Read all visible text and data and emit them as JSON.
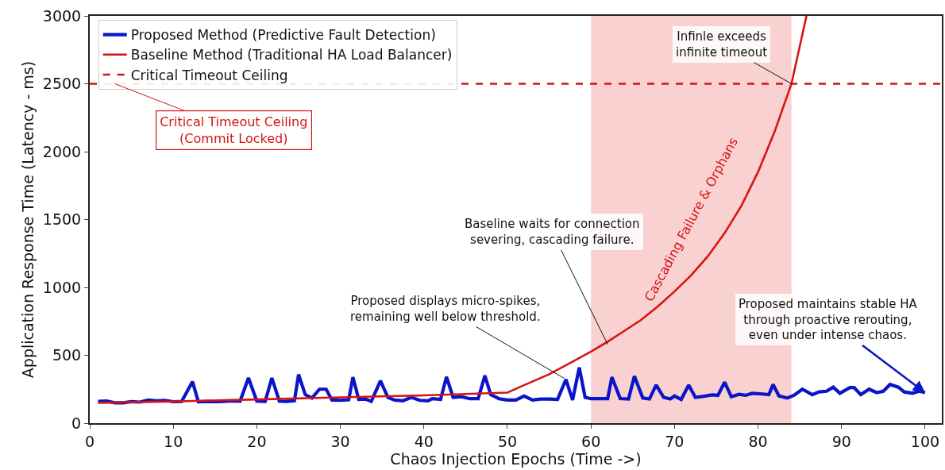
{
  "chart_data": {
    "type": "line",
    "xlabel": "Chaos Injection Epochs (Time ->)",
    "ylabel": "Application Response Time (Latency - ms)",
    "xlim": [
      0,
      102
    ],
    "xticks": [
      0,
      10,
      20,
      30,
      40,
      50,
      60,
      70,
      80,
      90,
      100
    ],
    "ylim": [
      0,
      3000
    ],
    "yticks": [
      0,
      500,
      1000,
      1500,
      2000,
      2500,
      3000
    ],
    "grid": false,
    "legend": "top left",
    "marker": "none",
    "line_style": "solid",
    "series": [
      {
        "name": "Proposed Method (Predictive Fault Detection)",
        "color": "#0a14c8",
        "x": [
          1,
          2,
          3,
          4,
          5,
          6,
          7,
          8,
          9,
          10,
          11,
          12.3,
          13,
          14,
          15,
          16,
          17,
          18,
          19,
          20,
          21,
          21.8,
          22.7,
          23.5,
          24.5,
          25,
          25.8,
          26.6,
          27.5,
          28.3,
          29,
          30,
          31,
          31.5,
          32.2,
          33,
          33.7,
          34.8,
          35.7,
          36.5,
          37.5,
          38.5,
          39.5,
          40.5,
          41,
          42,
          42.7,
          43.5,
          44.5,
          45.5,
          46.5,
          47.3,
          48,
          49,
          50,
          51,
          52,
          53,
          54,
          55,
          56,
          57,
          57.8,
          58.6,
          59.3,
          60,
          61,
          62,
          62.5,
          63.5,
          64.5,
          65.2,
          66.2,
          67,
          67.8,
          68.7,
          69.5,
          70,
          70.8,
          71.7,
          72.5,
          73.5,
          74.5,
          75.2,
          76,
          76.8,
          77.7,
          78.5,
          79.3,
          80.5,
          81.3,
          81.8,
          82.5,
          83.5,
          84.3,
          85.3,
          86.5,
          87.3,
          88.2,
          89,
          89.8,
          91,
          91.5,
          92.3,
          93.3,
          94.2,
          95,
          95.8,
          96.8,
          97.5,
          98.5,
          99.3,
          100
        ],
        "values": [
          160,
          163,
          150,
          150,
          158,
          155,
          170,
          165,
          168,
          158,
          160,
          306,
          158,
          160,
          158,
          160,
          165,
          162,
          333,
          162,
          160,
          333,
          162,
          160,
          165,
          358,
          210,
          185,
          250,
          250,
          170,
          168,
          172,
          339,
          175,
          178,
          160,
          312,
          190,
          170,
          165,
          190,
          168,
          165,
          180,
          175,
          341,
          190,
          195,
          180,
          180,
          350,
          210,
          180,
          170,
          170,
          200,
          170,
          178,
          178,
          175,
          322,
          170,
          410,
          190,
          180,
          180,
          180,
          339,
          181,
          178,
          347,
          185,
          178,
          281,
          190,
          178,
          200,
          175,
          281,
          190,
          198,
          208,
          205,
          302,
          195,
          212,
          205,
          220,
          215,
          210,
          285,
          200,
          185,
          205,
          250,
          210,
          230,
          235,
          265,
          220,
          262,
          262,
          210,
          250,
          225,
          235,
          285,
          265,
          230,
          220,
          235,
          225
        ]
      },
      {
        "name": "Baseline Method (Traditional HA Load Balancer)",
        "color": "#d41414",
        "x": [
          1,
          10,
          20,
          30,
          40,
          50,
          52,
          55,
          58,
          60,
          62,
          64,
          66,
          68,
          70,
          72,
          74,
          76,
          78,
          80,
          82,
          84,
          85.8
        ],
        "values": [
          150,
          160,
          175,
          190,
          205,
          225,
          280,
          360,
          460,
          527,
          600,
          680,
          760,
          860,
          970,
          1090,
          1230,
          1400,
          1600,
          1850,
          2150,
          2500,
          3000
        ]
      }
    ],
    "ref_lines": [
      {
        "axis": "y",
        "value": 2500,
        "label": "Critical Timeout Ceiling",
        "color": "#d41414",
        "line_style": "dashed"
      }
    ],
    "bands": [
      {
        "axis": "x",
        "from": 60,
        "to": 84,
        "label": "Cascading Failure & Orphans",
        "color": "#f9c9c9"
      }
    ],
    "annotations": [
      {
        "text": "Critical Timeout Ceiling\n(Commit Locked)",
        "x": 3,
        "y": 2500
      },
      {
        "text": "Infinle exceeds\ninfinite timeout",
        "x": 84,
        "y": 2500
      },
      {
        "text": "Baseline waits for connection\nsevering, cascading failure.",
        "x": 62,
        "y": 580
      },
      {
        "text": "Proposed displays micro-spikes,\nremaining well below threshold.",
        "x": 56.8,
        "y": 330
      },
      {
        "text": "Proposed maintains stable HA\nthrough proactive rerouting,\neven under intense chaos.",
        "x": 100,
        "y": 225
      }
    ]
  }
}
